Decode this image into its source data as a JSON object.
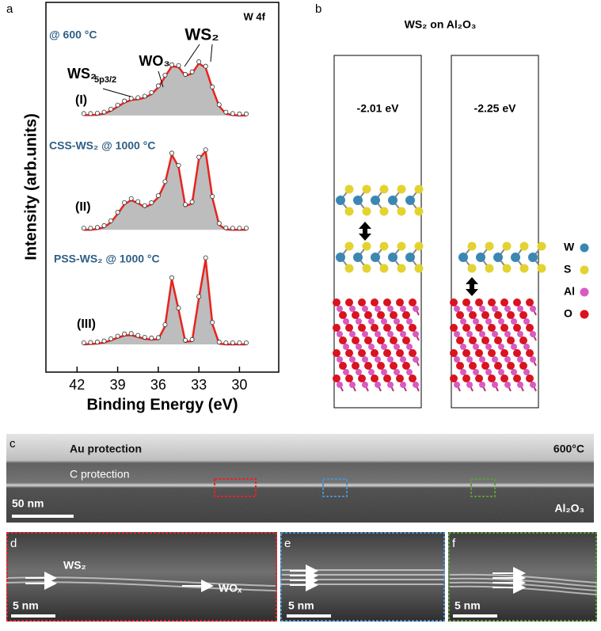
{
  "panel_labels": [
    "a",
    "b",
    "c",
    "d",
    "e",
    "f"
  ],
  "chart_data": {
    "type": "area",
    "xlabel": "Binding Energy (eV)",
    "ylabel": "Intensity (arb.units)",
    "x": [
      41.5,
      41,
      40.5,
      40,
      39.5,
      39,
      38.5,
      38,
      37.5,
      37,
      36.5,
      36,
      35.5,
      35,
      34.5,
      34,
      33.5,
      33,
      32.5,
      32,
      31.5,
      31,
      30.5,
      30,
      29.5
    ],
    "xlim": [
      44.3,
      27.1
    ],
    "xticks": [
      42,
      39,
      36,
      33,
      30
    ],
    "ylim": [
      0,
      100
    ],
    "fill": "#bdbdbd",
    "series": [
      {
        "name": "(I)",
        "color": "#e8231f",
        "values": [
          69.5,
          69.5,
          69.6,
          69.9,
          70.7,
          71.8,
          72.9,
          73.6,
          73.8,
          74.2,
          75.2,
          77.0,
          79.9,
          82.7,
          82.5,
          80.1,
          80.8,
          83.5,
          82.3,
          76.7,
          71.9,
          69.9,
          69.5,
          69.4,
          69.4
        ]
      },
      {
        "name": "(II)",
        "color": "#e8231f",
        "values": [
          38.5,
          38.5,
          38.7,
          39.2,
          40.5,
          42.8,
          45.4,
          46.5,
          45.7,
          44.6,
          45.4,
          47.3,
          51.1,
          58.8,
          55.5,
          44.9,
          45.6,
          57.7,
          59.7,
          47.1,
          39.8,
          38.6,
          38.5,
          38.5,
          38.5
        ]
      },
      {
        "name": "(III)",
        "color": "#e8231f",
        "values": [
          7.5,
          7.6,
          7.7,
          8.0,
          8.6,
          9.3,
          9.9,
          10.0,
          9.5,
          9.0,
          8.8,
          8.9,
          12.4,
          25.1,
          16.9,
          8.2,
          8.4,
          20.0,
          30.5,
          13.0,
          7.7,
          7.5,
          7.5,
          7.5,
          7.5
        ]
      }
    ],
    "annotations": [
      "W 4f",
      "@ 600 °C",
      "WS₂",
      "WO₃",
      "WS₂",
      "5p3/2",
      "CSS-WS₂ @ 1000 °C",
      "PSS-WS₂ @ 1000 °C"
    ]
  },
  "panel_b": {
    "title": "WS₂ on Al₂O₃",
    "energies": [
      "-2.01 eV",
      "-2.25 eV"
    ],
    "legend": [
      {
        "label": "W",
        "color": "#3b87b3"
      },
      {
        "label": "S",
        "color": "#e3d331"
      },
      {
        "label": "Al",
        "color": "#d85bc1"
      },
      {
        "label": "O",
        "color": "#d8141f"
      }
    ]
  },
  "panel_c": {
    "labels": [
      "Au protection",
      "600°C",
      "C protection",
      "Al₂O₃"
    ],
    "scale": "50 nm"
  },
  "panel_d": {
    "labels": [
      "WS₂",
      "WOₓ"
    ],
    "scale": "5 nm"
  },
  "panel_e": {
    "scale": "5 nm"
  },
  "panel_f": {
    "scale": "5 nm"
  }
}
